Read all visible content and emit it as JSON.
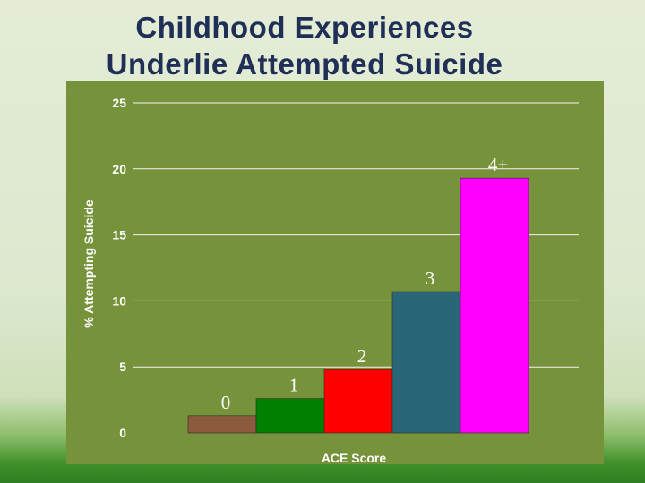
{
  "slide": {
    "title_line1": "Childhood Experiences",
    "title_line2": "Underlie Attempted Suicide"
  },
  "chart_data": {
    "type": "bar",
    "title": "",
    "xlabel": "ACE Score",
    "ylabel": "% Attempting Suicide",
    "categories": [
      "0",
      "1",
      "2",
      "3",
      "4+"
    ],
    "values": [
      1.3,
      2.6,
      4.8,
      10.7,
      19.3
    ],
    "bar_colors": [
      "#8c5a3c",
      "#008000",
      "#ff0000",
      "#2a6677",
      "#ff00ff"
    ],
    "ylim": [
      0,
      25
    ],
    "yticks": [
      0,
      5,
      10,
      15,
      20,
      25
    ],
    "grid": true,
    "legend": "none"
  }
}
